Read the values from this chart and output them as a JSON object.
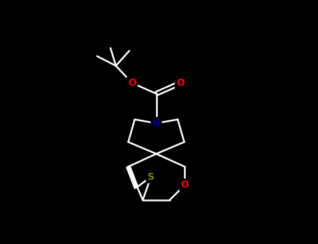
{
  "background_color": "#000000",
  "bond_color": "#ffffff",
  "atom_colors": {
    "O": "#ff0000",
    "N": "#000099",
    "S": "#808000",
    "C": "#ffffff"
  },
  "figsize": [
    4.55,
    3.5
  ],
  "dpi": 100,
  "lw": 1.8,
  "fontsize": 9
}
